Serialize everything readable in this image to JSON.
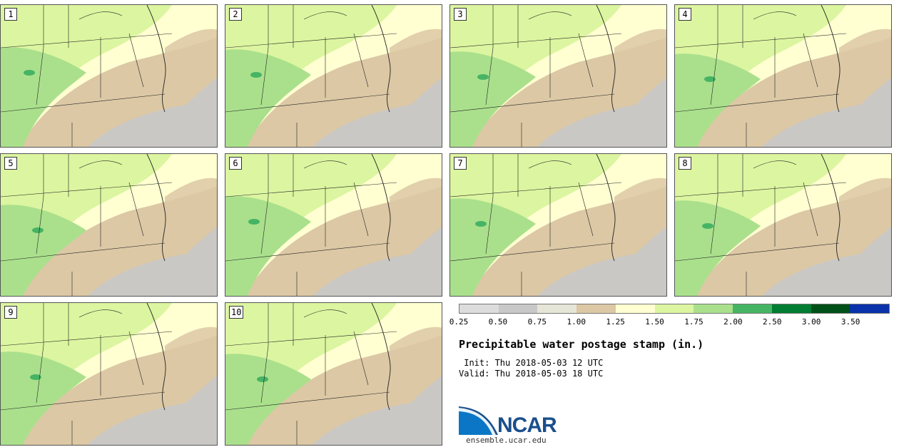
{
  "panels": [
    {
      "label": "1"
    },
    {
      "label": "2"
    },
    {
      "label": "3"
    },
    {
      "label": "4"
    },
    {
      "label": "5"
    },
    {
      "label": "6"
    },
    {
      "label": "7"
    },
    {
      "label": "8"
    },
    {
      "label": "9"
    },
    {
      "label": "10"
    }
  ],
  "legend": {
    "ticks": [
      "0.25",
      "0.50",
      "0.75",
      "1.00",
      "1.25",
      "1.50",
      "1.75",
      "2.00",
      "2.50",
      "3.00",
      "3.50"
    ],
    "colors": [
      "#dcdcdc",
      "#c8c8c8",
      "#e6e6d8",
      "#dcc8a5",
      "#ffffd2",
      "#dcf5a0",
      "#aae08c",
      "#46b464",
      "#007d32",
      "#005019",
      "#0a32aa"
    ]
  },
  "title": "Precipitable water postage stamp (in.)",
  "init": " Init: Thu 2018-05-03 12 UTC",
  "valid": "Valid: Thu 2018-05-03 18 UTC",
  "logo": {
    "name": "NCAR",
    "url": "ensemble.ucar.edu"
  }
}
